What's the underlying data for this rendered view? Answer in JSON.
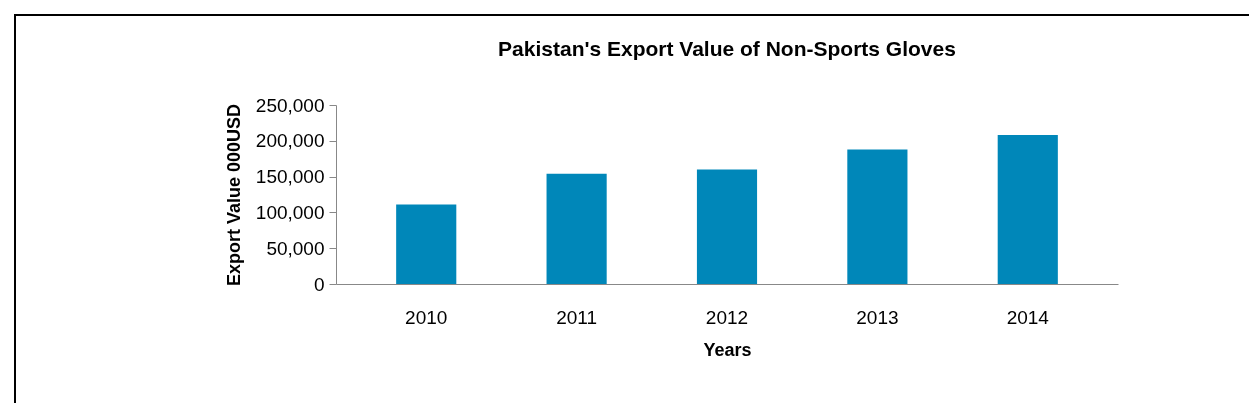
{
  "chart_data": {
    "type": "bar",
    "title": "Pakistan's Export Value of Non-Sports Gloves",
    "xlabel": "Years",
    "ylabel": "Export Value 000USD",
    "categories": [
      "2010",
      "2011",
      "2012",
      "2013",
      "2014"
    ],
    "series": [
      {
        "color": "#0087b9",
        "values": [
          111000,
          154000,
          160000,
          188000,
          208000
        ]
      }
    ],
    "ylim": [
      0,
      250000
    ],
    "yticks": [
      {
        "value": 0,
        "label": "0"
      },
      {
        "value": 50000,
        "label": "50,000"
      },
      {
        "value": 100000,
        "label": "100,000"
      },
      {
        "value": 150000,
        "label": "150,000"
      },
      {
        "value": 200000,
        "label": "200,000"
      },
      {
        "value": 250000,
        "label": "250,000"
      }
    ],
    "grid": false,
    "legend": false
  }
}
